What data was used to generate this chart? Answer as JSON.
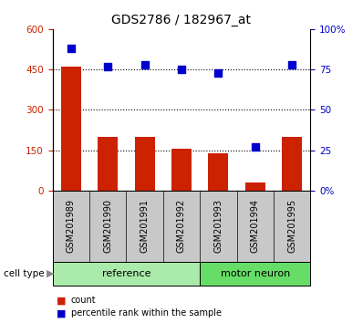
{
  "title": "GDS2786 / 182967_at",
  "samples": [
    "GSM201989",
    "GSM201990",
    "GSM201991",
    "GSM201992",
    "GSM201993",
    "GSM201994",
    "GSM201995"
  ],
  "counts": [
    460,
    200,
    200,
    155,
    140,
    30,
    200
  ],
  "percentile_ranks": [
    88,
    77,
    78,
    75,
    73,
    27,
    78
  ],
  "groups": [
    "reference",
    "reference",
    "reference",
    "reference",
    "motor neuron",
    "motor neuron",
    "motor neuron"
  ],
  "ref_color": "#aaeaaa",
  "mn_color": "#66dd66",
  "bar_color": "#cc2200",
  "dot_color": "#0000cc",
  "ylim_left": [
    0,
    600
  ],
  "ylim_right": [
    0,
    100
  ],
  "yticks_left": [
    0,
    150,
    300,
    450,
    600
  ],
  "yticks_right": [
    0,
    25,
    50,
    75,
    100
  ],
  "ytick_labels_left": [
    "0",
    "150",
    "300",
    "450",
    "600"
  ],
  "ytick_labels_right": [
    "0%",
    "25",
    "50",
    "75",
    "100%"
  ],
  "legend_count_label": "count",
  "legend_percentile_label": "percentile rank within the sample",
  "cell_type_label": "cell type",
  "title_fontsize": 10,
  "tick_fontsize": 7.5,
  "label_fontsize": 7,
  "group_fontsize": 8
}
